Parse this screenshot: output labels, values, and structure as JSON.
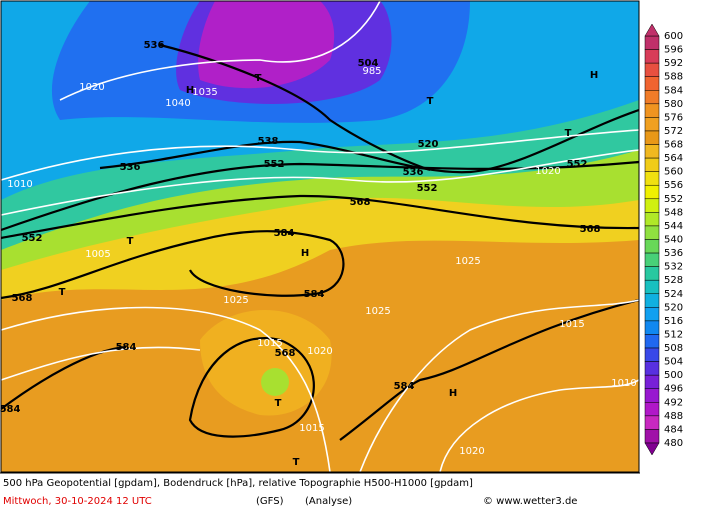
{
  "map": {
    "labels": [
      "536",
      "1020",
      "H",
      "1040",
      "1035",
      "T",
      "504",
      "985",
      "T",
      "538",
      "536",
      "552",
      "520",
      "536",
      "552",
      "552",
      "568",
      "552",
      "568",
      "584",
      "H",
      "584",
      "568",
      "584",
      "568",
      "T",
      "584",
      "H",
      "584",
      "1025",
      "1015",
      "1020",
      "1015",
      "T",
      "1025",
      "1015",
      "1010",
      "1020",
      "1010",
      "1005",
      "H",
      "T",
      "1025",
      "1020",
      "T",
      "T"
    ]
  },
  "colorbar": {
    "levels": [
      600,
      596,
      592,
      588,
      584,
      580,
      576,
      572,
      568,
      564,
      560,
      556,
      552,
      548,
      544,
      540,
      536,
      532,
      528,
      524,
      520,
      516,
      512,
      508,
      504,
      500,
      496,
      492,
      488,
      484,
      480
    ],
    "colors": [
      "#c0306a",
      "#d83c58",
      "#e85040",
      "#f06430",
      "#f07c28",
      "#f09420",
      "#f0a020",
      "#e89818",
      "#f0b820",
      "#f0cc18",
      "#f0e010",
      "#f0f000",
      "#d0f010",
      "#b0e828",
      "#90e040",
      "#68d858",
      "#48d078",
      "#28c8a0",
      "#18c0c0",
      "#10b0e0",
      "#10a0f0",
      "#1088f0",
      "#2068f0",
      "#3848e8",
      "#5830e0",
      "#7820d8",
      "#9818d0",
      "#b018c8",
      "#c828c0",
      "#a010a8",
      "#800090"
    ]
  },
  "footer": {
    "line1": "500 hPa Geopotential [gpdam], Bodendruck [hPa], relative Topographie H500-H1000 [gpdam]",
    "date": "Mittwoch, 30-10-2024  12 UTC",
    "model": "(GFS)",
    "run": "(Analyse)",
    "credit": "© www.wetter3.de"
  }
}
